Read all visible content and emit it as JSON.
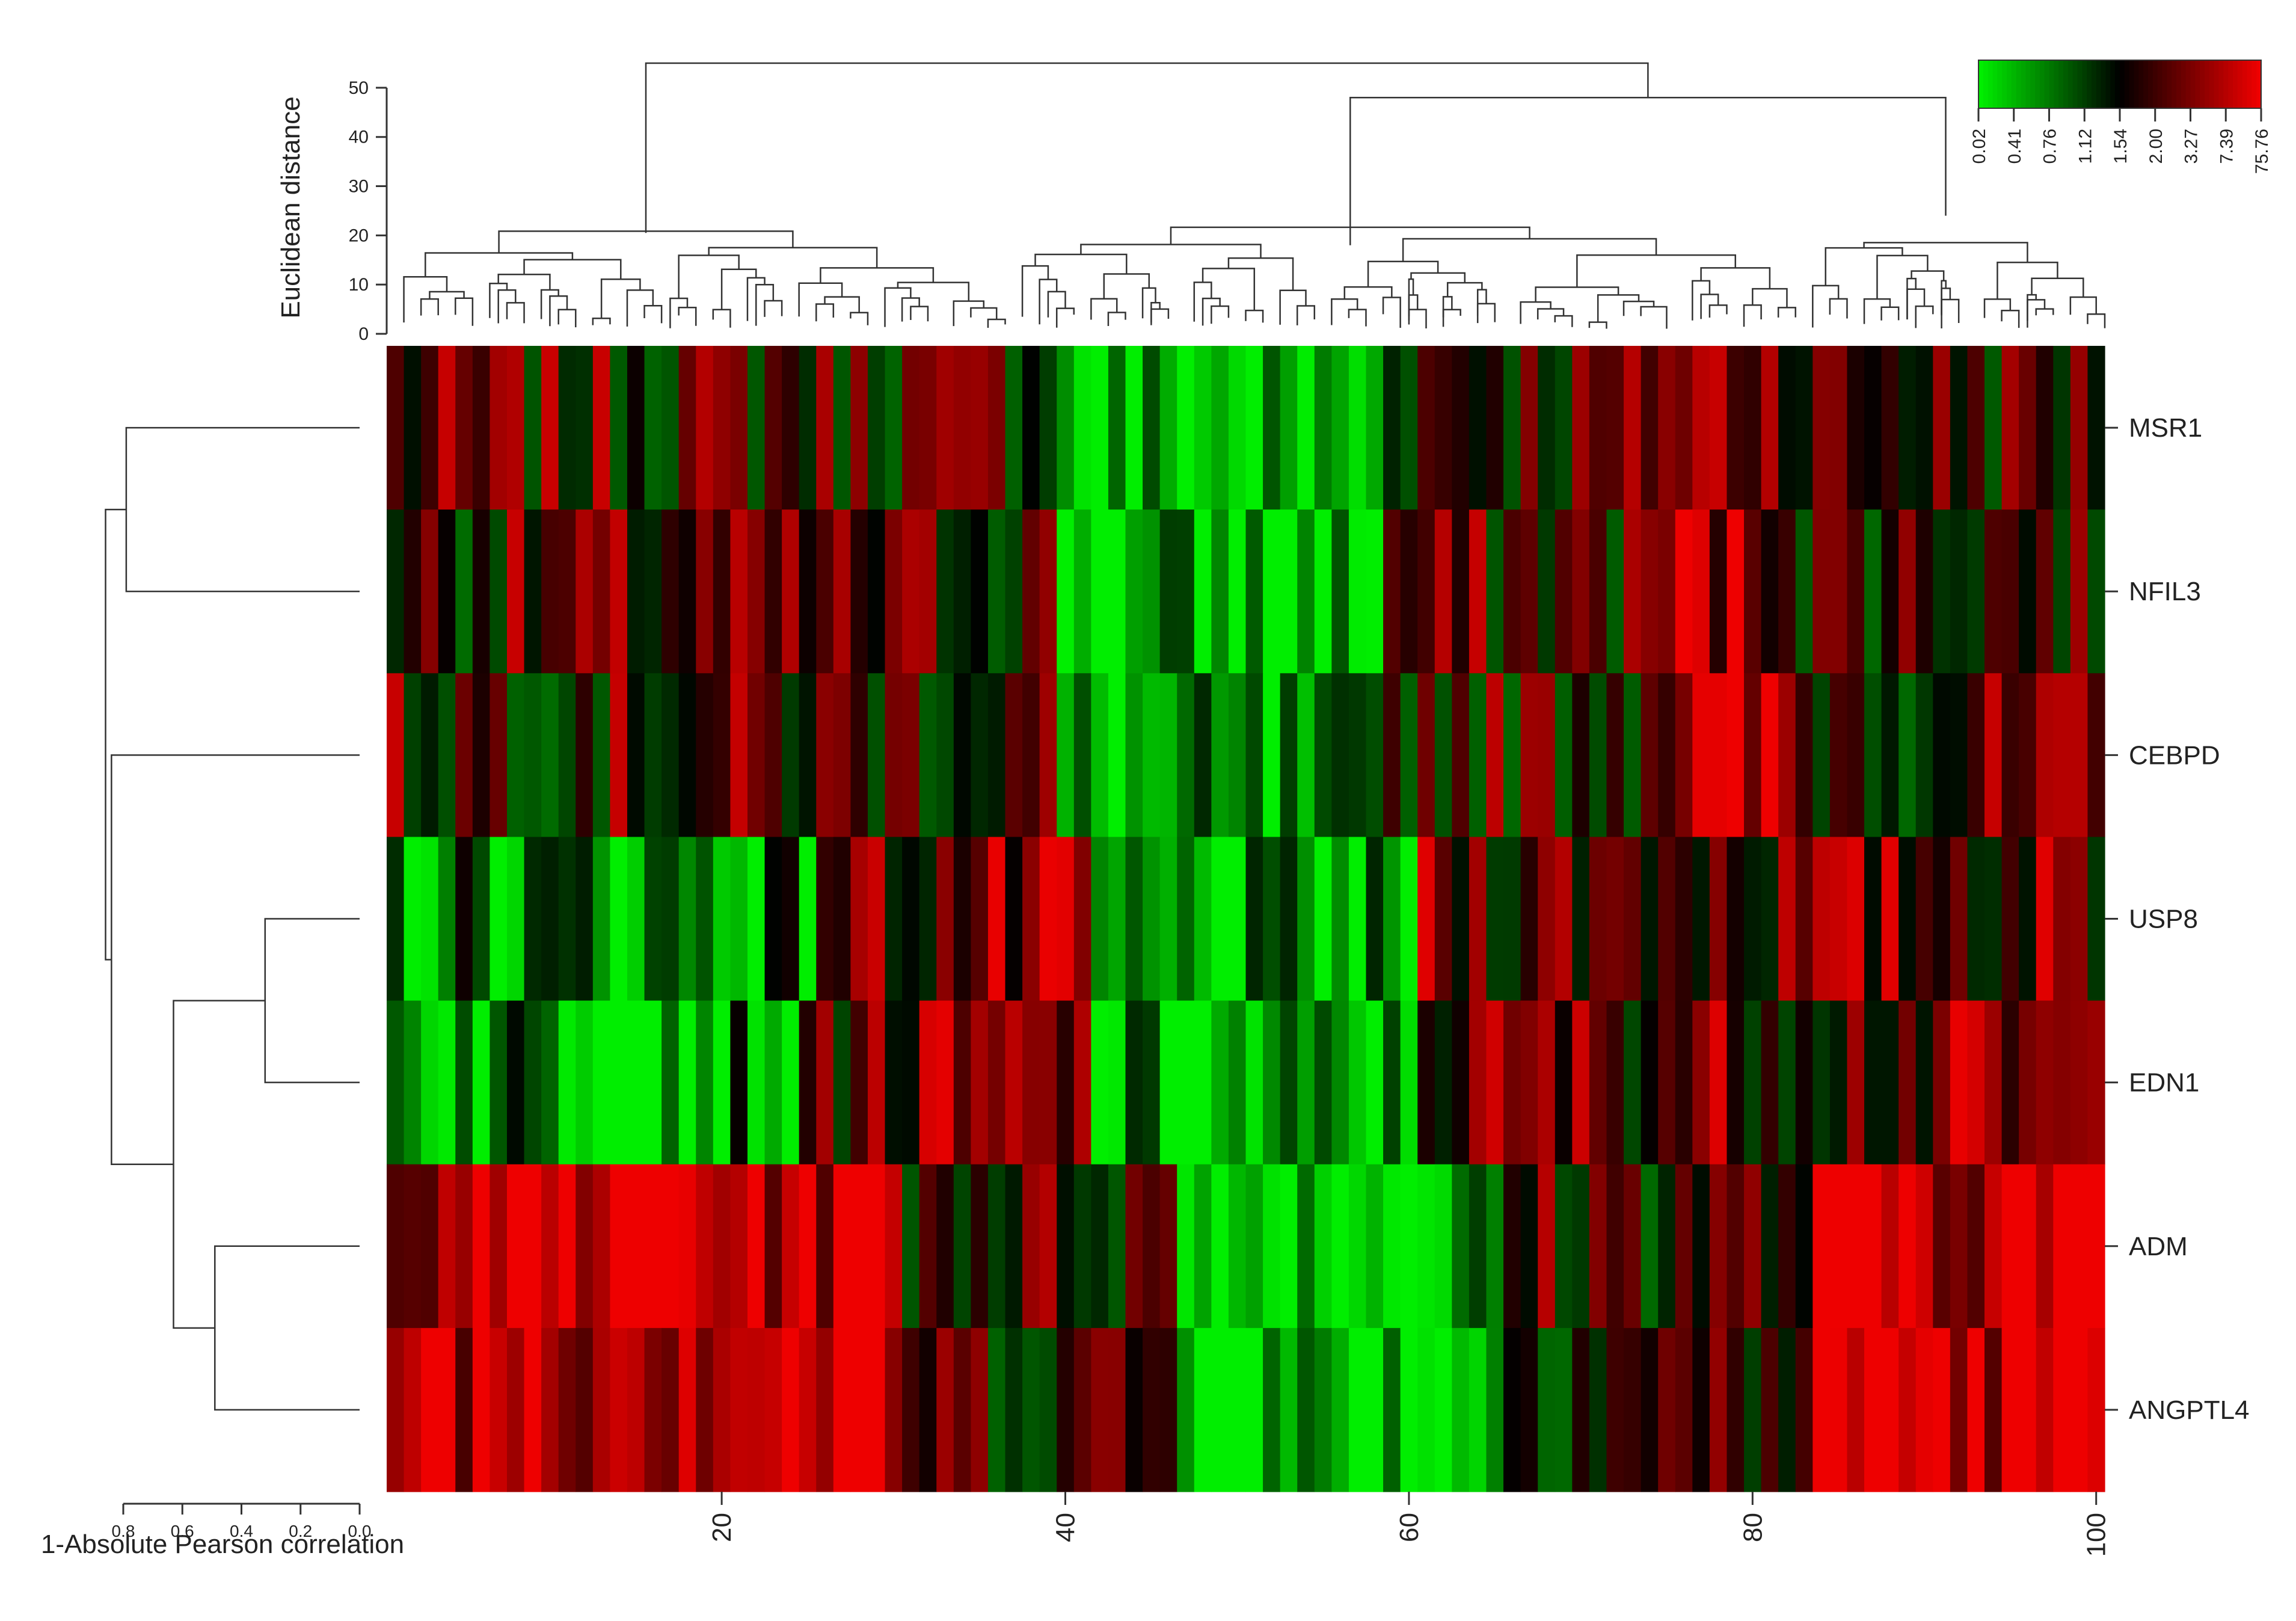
{
  "chart_data": {
    "type": "heatmap",
    "rows": [
      "MSR1",
      "NFIL3",
      "CEBPD",
      "USP8",
      "EDN1",
      "ADM",
      "ANGPTL4"
    ],
    "columns_count": 100,
    "x_ticks": [
      20,
      40,
      60,
      80,
      100
    ],
    "colors": {
      "low": "#00ee00",
      "mid": "#000000",
      "high": "#ee0000"
    },
    "legend": {
      "position": "top-right",
      "labels": [
        "0.02",
        "0.41",
        "0.76",
        "1.12",
        "1.54",
        "2.00",
        "3.27",
        "7.39",
        "75.76"
      ]
    },
    "column_dendrogram": {
      "ylabel": "Euclidean distance",
      "y_ticks": [
        0,
        10,
        20,
        30,
        40,
        50
      ],
      "ylim": [
        0,
        55
      ]
    },
    "row_dendrogram": {
      "xlabel": "1-Absolute Pearson correlation",
      "x_ticks": [
        "0.8",
        "0.6",
        "0.4",
        "0.2",
        "0.0"
      ],
      "xlim": [
        0.8,
        0.0
      ]
    }
  }
}
